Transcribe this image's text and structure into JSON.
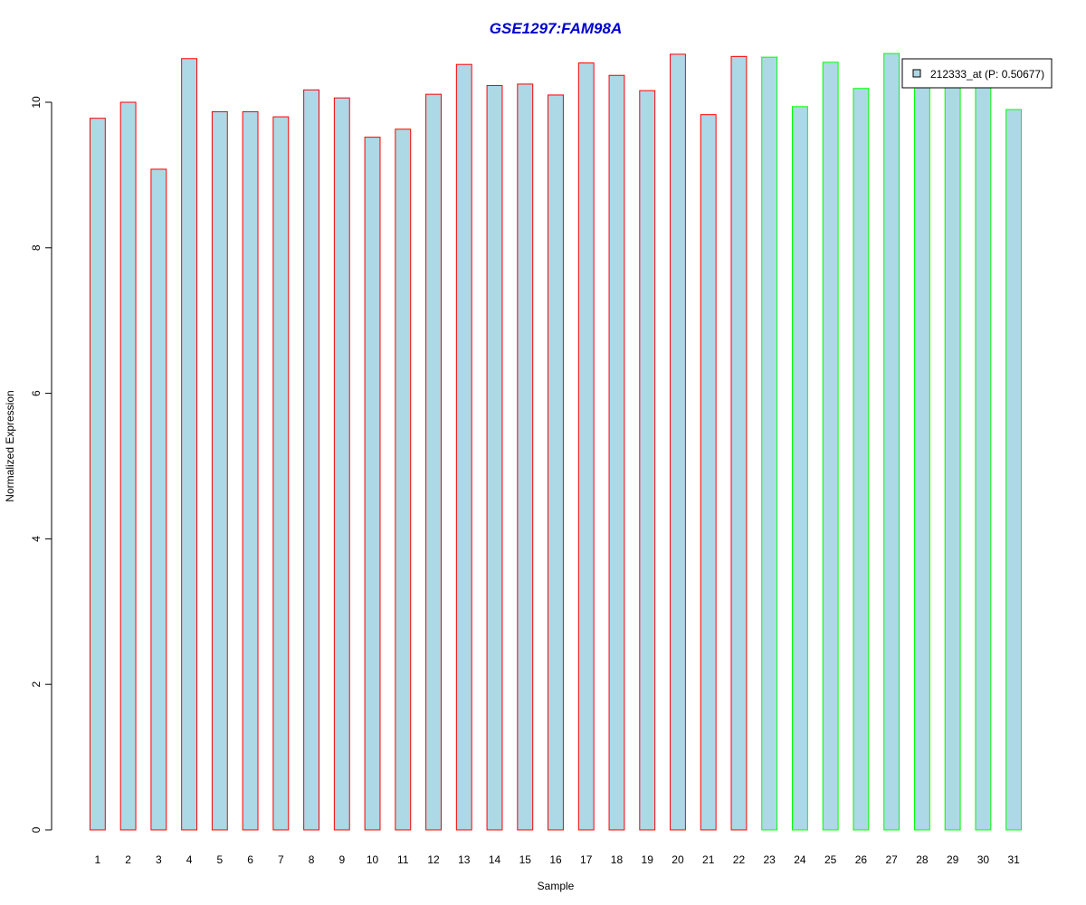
{
  "chart_data": {
    "type": "bar",
    "title": "GSE1297:FAM98A",
    "xlabel": "Sample",
    "ylabel": "Normalized Expression",
    "categories": [
      "1",
      "2",
      "3",
      "4",
      "5",
      "6",
      "7",
      "8",
      "9",
      "10",
      "11",
      "12",
      "13",
      "14",
      "15",
      "16",
      "17",
      "18",
      "19",
      "20",
      "21",
      "22",
      "23",
      "24",
      "25",
      "26",
      "27",
      "28",
      "29",
      "30",
      "31"
    ],
    "values": [
      9.78,
      10.0,
      9.08,
      10.6,
      9.87,
      9.87,
      9.8,
      10.17,
      10.06,
      9.52,
      9.63,
      10.11,
      10.52,
      10.23,
      10.25,
      10.1,
      10.54,
      10.37,
      10.16,
      10.66,
      9.83,
      10.63,
      10.62,
      9.94,
      10.55,
      10.19,
      10.67,
      10.24,
      10.24,
      10.24,
      9.9
    ],
    "groups": [
      "red",
      "red",
      "red",
      "red",
      "red",
      "red",
      "red",
      "red",
      "red",
      "red",
      "red",
      "red",
      "red",
      "red",
      "red",
      "red",
      "red",
      "red",
      "red",
      "red",
      "red",
      "red",
      "green",
      "green",
      "green",
      "green",
      "green",
      "green",
      "green",
      "green",
      "green"
    ],
    "ylim": [
      0,
      10.67
    ],
    "yticks": [
      "0",
      "2",
      "4",
      "6",
      "8",
      "10"
    ],
    "grid": false,
    "legend": {
      "position": "top-right",
      "entries": [
        {
          "label": "212333_at (P: 0.50677)",
          "fill": "#ADD8E6"
        }
      ]
    },
    "colors": {
      "bar_fill": "#ADD8E6",
      "border_group_red": "#FF0000",
      "border_group_green": "#00FF00",
      "title": "#0000CC"
    }
  }
}
